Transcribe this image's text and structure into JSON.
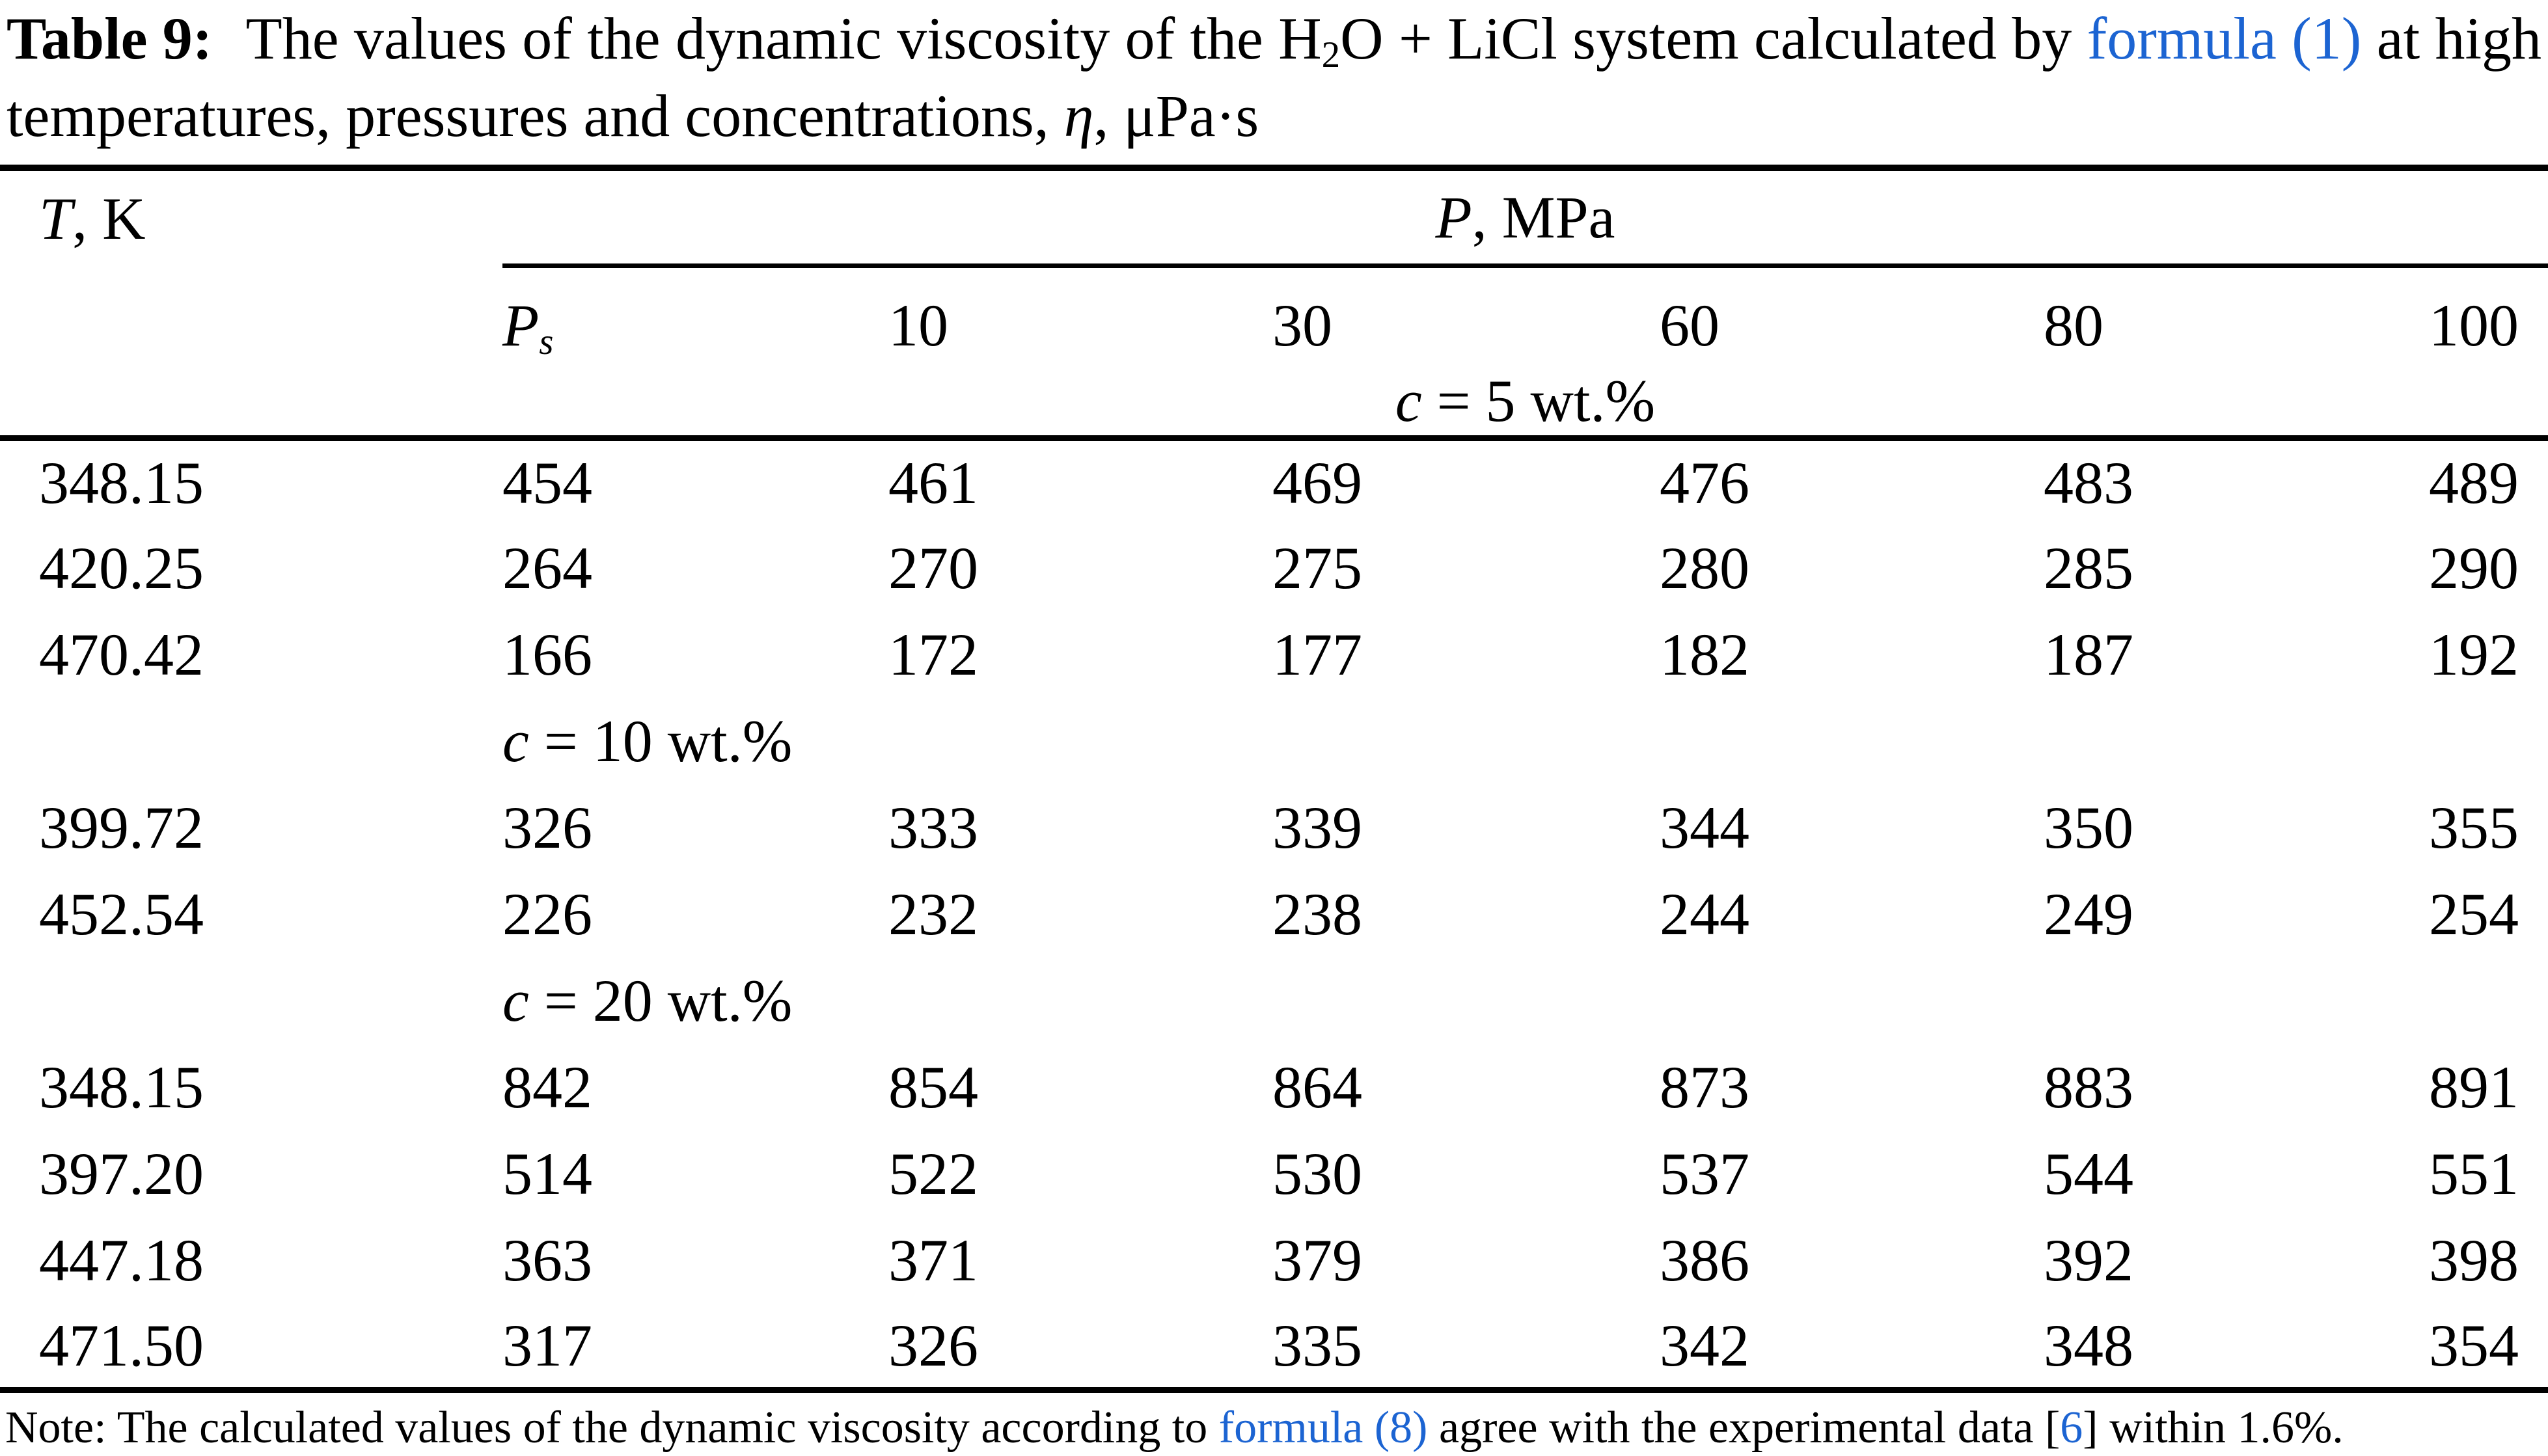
{
  "colors": {
    "text": "#000000",
    "link_blue": "#1c64d2",
    "background": "#ffffff",
    "rule": "#000000"
  },
  "title": {
    "bold": "Table 9:",
    "seg1": " The values of the dynamic viscosity of the H",
    "h2o_subscript": "2",
    "seg2": "O + LiCl system calculated by ",
    "link1": "formula (1)",
    "seg3": " at high",
    "line2_seg1": "temperatures, pressures and concentrations, ",
    "eta": "η",
    "line2_seg2": ", μPa·s"
  },
  "table": {
    "columns": {
      "t_header": {
        "italic": "T",
        "rest": ", K"
      },
      "p_header": {
        "italic": "P",
        "rest": ", MPa"
      },
      "p_sub_header": {
        "italic": "P",
        "subscript": "s"
      },
      "pressures": [
        "10",
        "30",
        "60",
        "80",
        "100"
      ]
    },
    "sections": [
      {
        "label": {
          "italic": "c",
          "rest": " = 5 wt.%"
        },
        "align": "center",
        "rows": [
          {
            "t": "348.15",
            "values": [
              "454",
              "461",
              "469",
              "476",
              "483",
              "489"
            ]
          },
          {
            "t": "420.25",
            "values": [
              "264",
              "270",
              "275",
              "280",
              "285",
              "290"
            ]
          },
          {
            "t": "470.42",
            "values": [
              "166",
              "172",
              "177",
              "182",
              "187",
              "192"
            ]
          }
        ]
      },
      {
        "label": {
          "italic": "c",
          "rest": " = 10 wt.%"
        },
        "align": "left",
        "rows": [
          {
            "t": "399.72",
            "values": [
              "326",
              "333",
              "339",
              "344",
              "350",
              "355"
            ]
          },
          {
            "t": "452.54",
            "values": [
              "226",
              "232",
              "238",
              "244",
              "249",
              "254"
            ]
          }
        ]
      },
      {
        "label": {
          "italic": "c",
          "rest": " = 20 wt.%"
        },
        "align": "left",
        "rows": [
          {
            "t": "348.15",
            "values": [
              "842",
              "854",
              "864",
              "873",
              "883",
              "891"
            ]
          },
          {
            "t": "397.20",
            "values": [
              "514",
              "522",
              "530",
              "537",
              "544",
              "551"
            ]
          },
          {
            "t": "447.18",
            "values": [
              "363",
              "371",
              "379",
              "386",
              "392",
              "398"
            ]
          },
          {
            "t": "471.50",
            "values": [
              "317",
              "326",
              "335",
              "342",
              "348",
              "354"
            ]
          }
        ]
      }
    ]
  },
  "note": {
    "seg1": "Note: The calculated values of the dynamic viscosity according to ",
    "link1": "formula (8)",
    "seg2": " agree with the experimental data [",
    "link2": "6",
    "seg3": "] within 1.6%."
  }
}
